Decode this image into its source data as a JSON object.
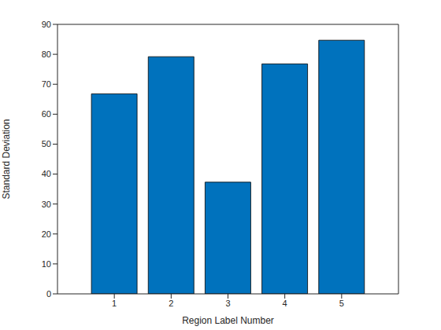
{
  "chart_data": {
    "type": "bar",
    "x_label": "Region Label Number",
    "y_label": "Standard Deviation",
    "x": [
      1,
      2,
      3,
      4,
      5
    ],
    "values": [
      66.8,
      79.2,
      37.3,
      76.8,
      84.7
    ],
    "color": "#0072bd",
    "xlim": [
      0,
      6
    ],
    "ylim": [
      0,
      90
    ],
    "xticks": [
      1,
      2,
      3,
      4,
      5
    ],
    "yticks": [
      0,
      10,
      20,
      30,
      40,
      50,
      60,
      70,
      80,
      90
    ],
    "grid": false
  }
}
